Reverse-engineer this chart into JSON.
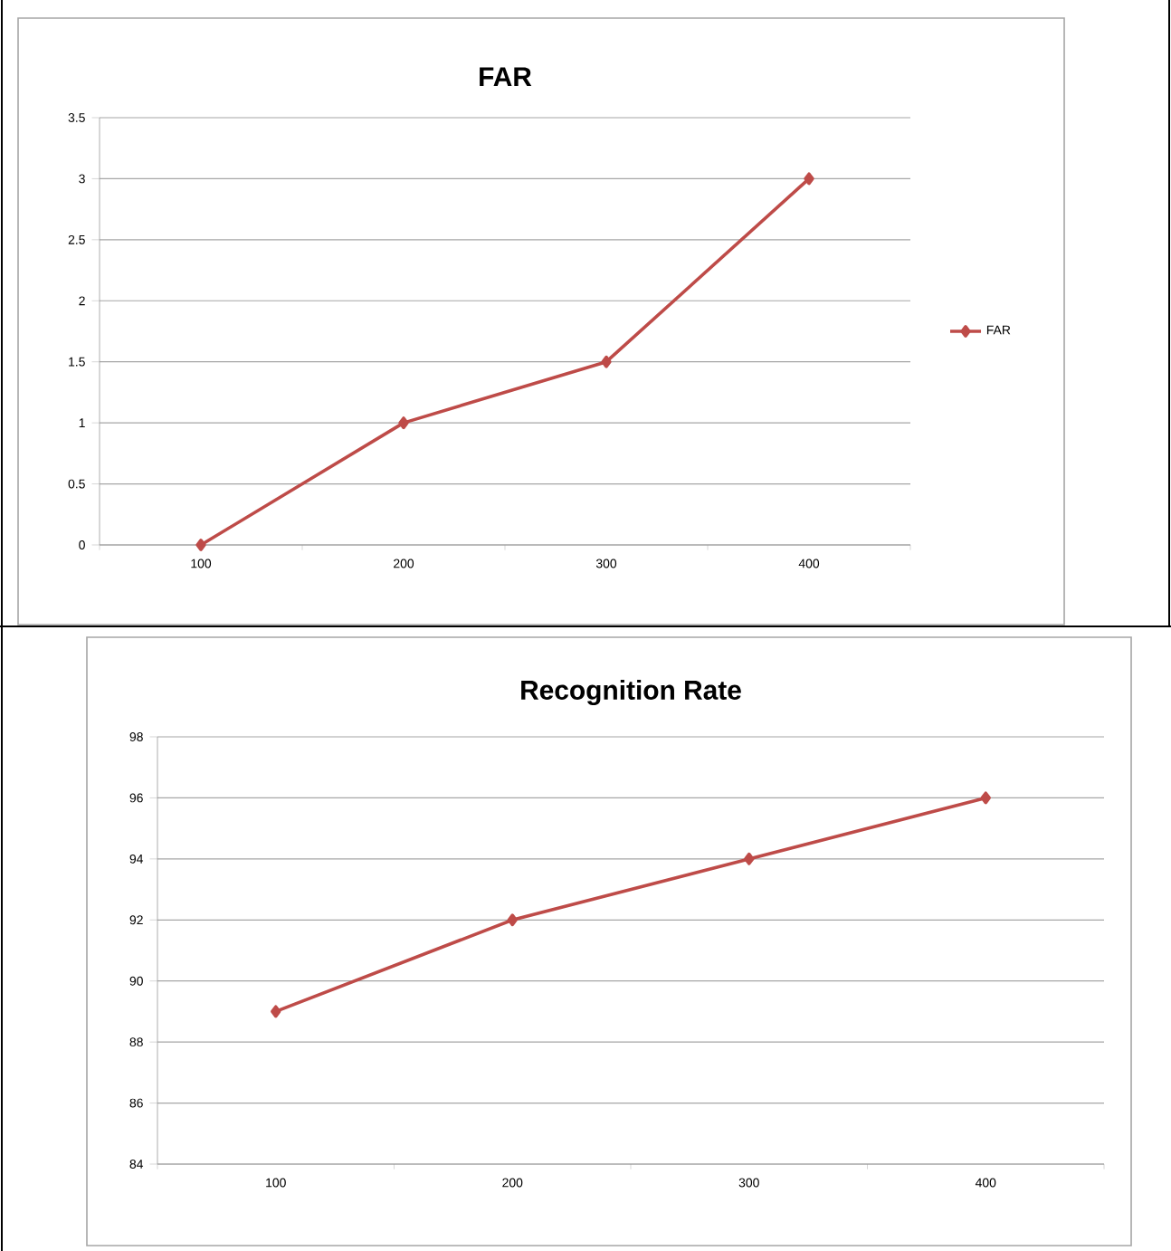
{
  "chart_data": [
    {
      "type": "line",
      "title": "FAR",
      "categories": [
        "100",
        "200",
        "300",
        "400"
      ],
      "series": [
        {
          "name": "FAR",
          "color": "#be4b48",
          "values": [
            0,
            1,
            1.5,
            3
          ]
        }
      ],
      "ylim": [
        0,
        3.5
      ],
      "yticks": [
        0,
        0.5,
        1,
        1.5,
        2,
        2.5,
        3,
        3.5
      ],
      "grid": "y",
      "legend": "right",
      "marker": "diamond"
    },
    {
      "type": "line",
      "title": "Recognition Rate",
      "categories": [
        "100",
        "200",
        "300",
        "400"
      ],
      "series": [
        {
          "color": "#be4b48",
          "values": [
            89,
            92,
            94,
            96
          ]
        }
      ],
      "ylim": [
        84,
        98
      ],
      "yticks": [
        84,
        86,
        88,
        90,
        92,
        94,
        96,
        98
      ],
      "grid": "y",
      "marker": "diamond"
    }
  ]
}
